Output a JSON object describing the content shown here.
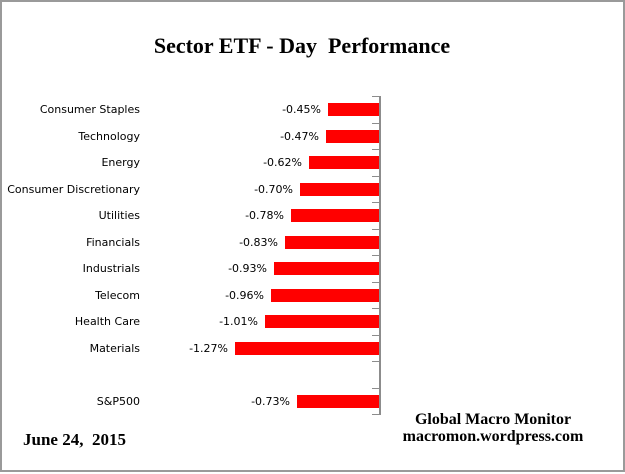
{
  "title": "Sector ETF - Day  Performance",
  "footer": {
    "date": "June 24,  2015",
    "source_line1": "Global Macro Monitor",
    "source_line2": "macromon.wordpress.com"
  },
  "chart_data": {
    "type": "bar",
    "orientation": "horizontal",
    "title": "Sector ETF - Day  Performance",
    "categories": [
      "Consumer Staples",
      "Technology",
      "Energy",
      "Consumer Discretionary",
      "Utilities",
      "Financials",
      "Industrials",
      "Telecom",
      "Health Care",
      "Materials",
      "S&P500"
    ],
    "values": [
      -0.45,
      -0.47,
      -0.62,
      -0.7,
      -0.78,
      -0.83,
      -0.93,
      -0.96,
      -1.01,
      -1.27,
      -0.73
    ],
    "value_labels": [
      "-0.45%",
      "-0.47%",
      "-0.62%",
      "-0.70%",
      "-0.78%",
      "-0.83%",
      "-0.93%",
      "-0.96%",
      "-1.01%",
      "-1.27%",
      "-0.73%"
    ],
    "blank_row_after": "Materials",
    "bar_color": "#FF0000",
    "axis_color": "#8C8C8C",
    "xlim": [
      -1.4,
      0
    ],
    "grid": false,
    "value_axis_labels_visible": false,
    "data_labels_position": "outside-end-left",
    "zero_baseline": "right"
  }
}
